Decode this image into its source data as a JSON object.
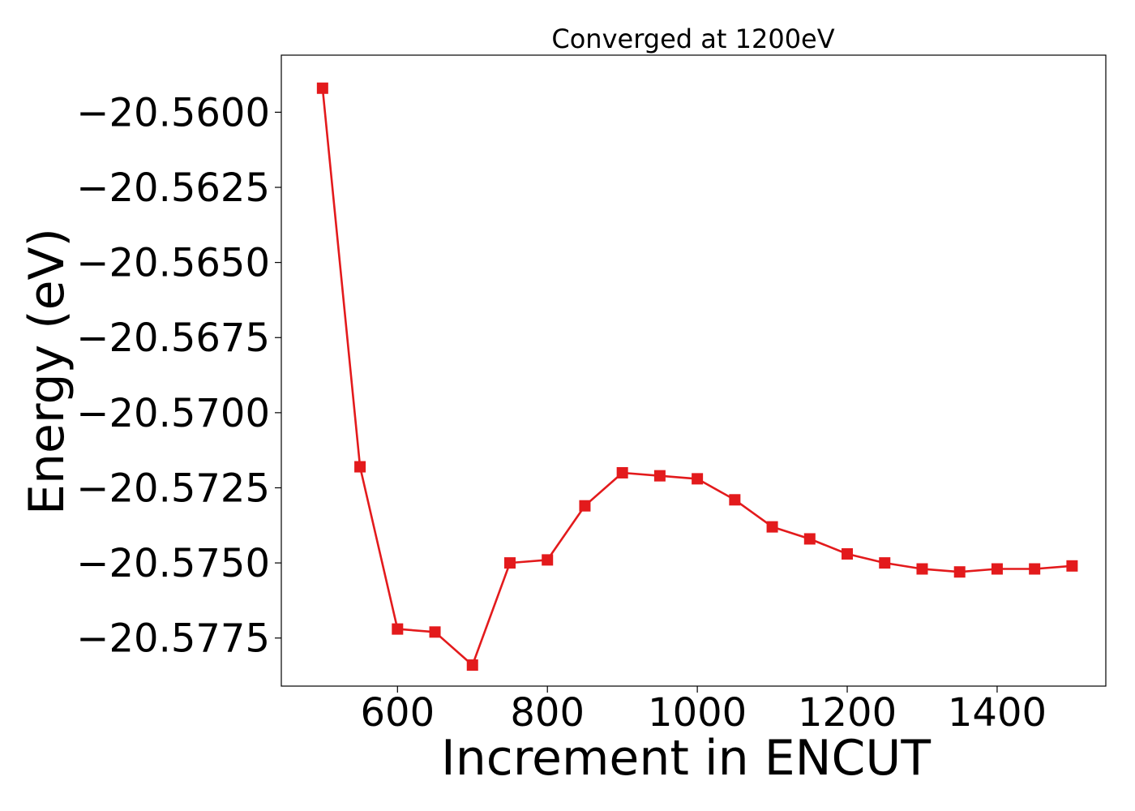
{
  "chart_data": {
    "type": "line",
    "title": "Converged at 1200eV",
    "xlabel": "Increment in ENCUT",
    "ylabel": "Energy (eV)",
    "xlim": [
      445,
      1545
    ],
    "ylim": [
      -20.5791,
      -20.5581
    ],
    "x_ticks": [
      600,
      800,
      1000,
      1200,
      1400
    ],
    "x_tick_labels": [
      "600",
      "800",
      "1000",
      "1200",
      "1400"
    ],
    "y_ticks": [
      -20.56,
      -20.5625,
      -20.565,
      -20.5675,
      -20.57,
      -20.5725,
      -20.575,
      -20.5775
    ],
    "y_tick_labels": [
      "−20.5600",
      "−20.5625",
      "−20.5650",
      "−20.5675",
      "−20.5700",
      "−20.5725",
      "−20.5750",
      "−20.5775"
    ],
    "grid": false,
    "series": [
      {
        "color": "#e31a1c",
        "marker": "square",
        "x": [
          500,
          550,
          600,
          650,
          700,
          750,
          800,
          850,
          900,
          950,
          1000,
          1050,
          1100,
          1150,
          1200,
          1250,
          1300,
          1350,
          1400,
          1450,
          1500
        ],
        "y": [
          -20.5592,
          -20.5718,
          -20.5772,
          -20.5773,
          -20.5784,
          -20.575,
          -20.5749,
          -20.5731,
          -20.572,
          -20.5721,
          -20.5722,
          -20.5729,
          -20.5738,
          -20.5742,
          -20.5747,
          -20.575,
          -20.5752,
          -20.5753,
          -20.5752,
          -20.5752,
          -20.5751
        ]
      }
    ]
  }
}
